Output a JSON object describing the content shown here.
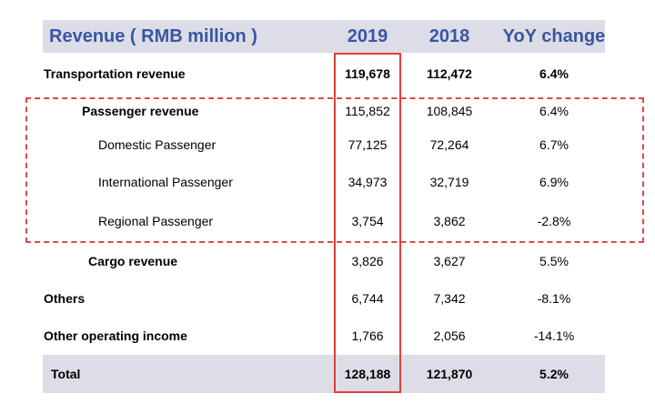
{
  "header": {
    "label": "Revenue ( RMB million )",
    "col_2019": "2019",
    "col_2018": "2018",
    "col_yoy": "YoY change"
  },
  "rows": [
    {
      "label": "Transportation revenue",
      "v2019": "119,678",
      "v2018": "112,472",
      "yoy": "6.4%"
    },
    {
      "label": "Passenger revenue",
      "v2019": "115,852",
      "v2018": "108,845",
      "yoy": "6.4%"
    },
    {
      "label": "Domestic Passenger",
      "v2019": "77,125",
      "v2018": "72,264",
      "yoy": "6.7%"
    },
    {
      "label": "International Passenger",
      "v2019": "34,973",
      "v2018": "32,719",
      "yoy": "6.9%"
    },
    {
      "label": "Regional Passenger",
      "v2019": "3,754",
      "v2018": "3,862",
      "yoy": "-2.8%"
    },
    {
      "label": "Cargo revenue",
      "v2019": "3,826",
      "v2018": "3,627",
      "yoy": "5.5%"
    },
    {
      "label": "Others",
      "v2019": "6,744",
      "v2018": "7,342",
      "yoy": "-8.1%"
    },
    {
      "label": "Other operating income",
      "v2019": "1,766",
      "v2018": "2,056",
      "yoy": "-14.1%"
    },
    {
      "label": "Total",
      "v2019": "128,188",
      "v2018": "121,870",
      "yoy": "5.2%"
    }
  ],
  "colors": {
    "header_text": "#3a55a3",
    "header_bg": "#dcdde6",
    "highlight_red": "#e0403b"
  }
}
